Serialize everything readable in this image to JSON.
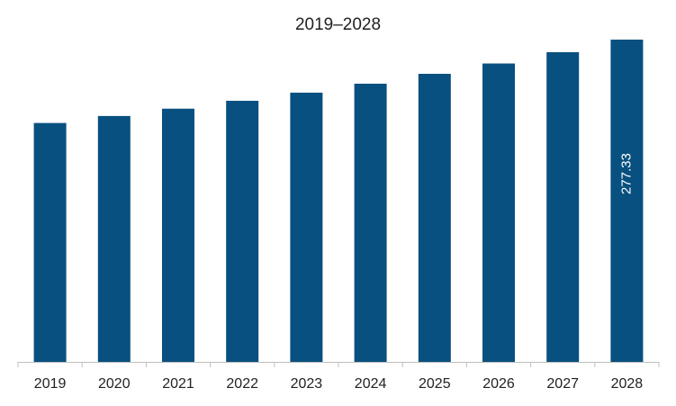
{
  "chart_data": {
    "type": "bar",
    "title": "2019–2028",
    "categories": [
      "2019",
      "2020",
      "2021",
      "2022",
      "2023",
      "2024",
      "2025",
      "2026",
      "2027",
      "2028"
    ],
    "values": [
      205.6,
      211.6,
      217.9,
      224.7,
      231.7,
      239.4,
      247.9,
      256.8,
      266.5,
      277.33
    ],
    "data_labels": [
      null,
      null,
      null,
      null,
      null,
      null,
      null,
      null,
      null,
      "277.33"
    ],
    "xlabel": "",
    "ylabel": "",
    "ylim": [
      0,
      282
    ],
    "grid": false,
    "legend": "none",
    "bar_color": "#08507f",
    "axis_color": "#bfbfbf"
  }
}
